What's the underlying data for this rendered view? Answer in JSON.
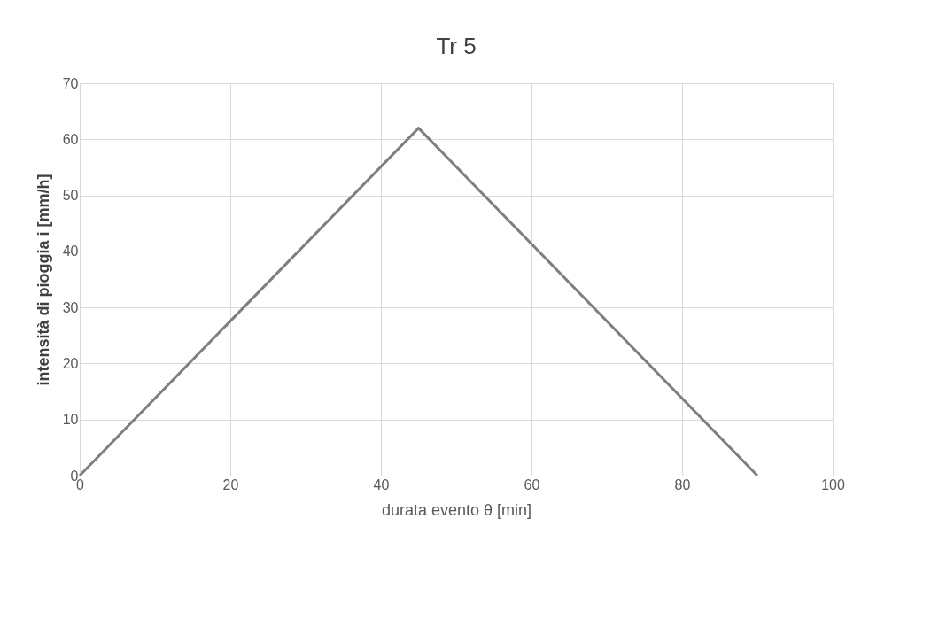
{
  "chart_data": {
    "type": "line",
    "title": "Tr 5",
    "xlabel": "durata evento θ [min]",
    "ylabel": "intensità di pioggia i [mm/h]",
    "x": [
      0,
      45,
      90
    ],
    "series": [
      {
        "color": "#7f7f7f",
        "values": [
          0,
          62,
          0
        ]
      }
    ],
    "xlim": [
      0,
      100
    ],
    "xticks": [
      0,
      20,
      40,
      60,
      80,
      100
    ],
    "ylim": [
      0,
      70
    ],
    "yticks": [
      0,
      10,
      20,
      30,
      40,
      50,
      60,
      70
    ],
    "grid": true,
    "marker": "none",
    "line_style": "solid"
  }
}
